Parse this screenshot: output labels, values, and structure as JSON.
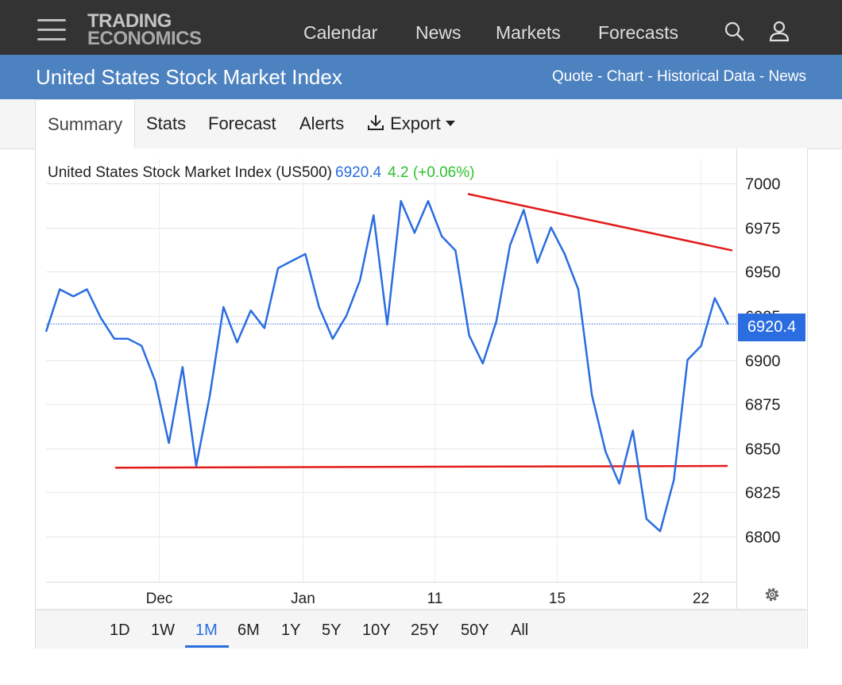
{
  "nav": {
    "logo_line1": "TRADING",
    "logo_line2": "ECONOMICS",
    "links": [
      "Calendar",
      "News",
      "Markets",
      "Forecasts"
    ]
  },
  "header": {
    "title": "United States Stock Market Index",
    "links": [
      "Quote",
      "Chart",
      "Historical Data",
      "News"
    ],
    "separator": " - "
  },
  "tabs": {
    "summary": "Summary",
    "stats": "Stats",
    "forecast": "Forecast",
    "alerts": "Alerts",
    "export": "Export"
  },
  "legend": {
    "name": "United States Stock Market Index (US500)",
    "price": "6920.4",
    "change": "4.2 (+0.06%)"
  },
  "price_tag": "6920.4",
  "ranges": [
    "1D",
    "1W",
    "1M",
    "6M",
    "1Y",
    "5Y",
    "10Y",
    "25Y",
    "50Y",
    "All"
  ],
  "active_range": "1M",
  "colors": {
    "nav_bg": "#333333",
    "title_bg": "#4d82c0",
    "line": "#2a6de0",
    "trendline": "#e31b1b",
    "change_positive": "#2fbf2f"
  },
  "icons": [
    "menu-icon",
    "search-icon",
    "user-icon",
    "download-icon",
    "caret-down-icon",
    "gear-icon"
  ],
  "chart_data": {
    "type": "line",
    "series": [
      {
        "x": [
          0,
          2,
          4,
          6,
          8,
          10,
          12,
          14,
          16,
          18,
          20,
          22,
          24,
          26,
          28,
          30,
          32,
          34,
          36,
          38,
          40,
          42,
          44,
          46,
          48,
          50,
          52,
          54,
          56,
          58,
          60,
          62,
          64,
          66,
          68,
          70,
          72,
          74,
          76,
          78,
          80,
          82,
          84,
          86,
          88,
          90,
          92,
          94,
          96,
          98,
          100
        ],
        "y": [
          6916,
          6940,
          6936,
          6940,
          6924,
          6912,
          6912,
          6908,
          6888,
          6853,
          6896,
          6840,
          6880,
          6930,
          6910,
          6928,
          6918,
          6952,
          6956,
          6960,
          6930,
          6912,
          6925,
          6945,
          6982,
          6920,
          6990,
          6972,
          6990,
          6970,
          6962,
          6914,
          6898,
          6922,
          6965,
          6985,
          6955,
          6975,
          6960,
          6940,
          6880,
          6848,
          6830,
          6860,
          6810,
          6803,
          6832,
          6900,
          6908,
          6935,
          6920
        ]
      }
    ],
    "x_ticks": [
      "Dec",
      "Jan",
      "11",
      "15",
      "22"
    ],
    "y_ticks": [
      7000,
      6975,
      6950,
      6925,
      6900,
      6875,
      6850,
      6825,
      6800
    ],
    "ylim": [
      6785,
      7010
    ],
    "last_value": 6920.4,
    "trendlines": [
      {
        "y_start": 6994,
        "y_end": 6962
      },
      {
        "y_start": 6839,
        "y_end": 6840
      }
    ],
    "grid": true
  }
}
